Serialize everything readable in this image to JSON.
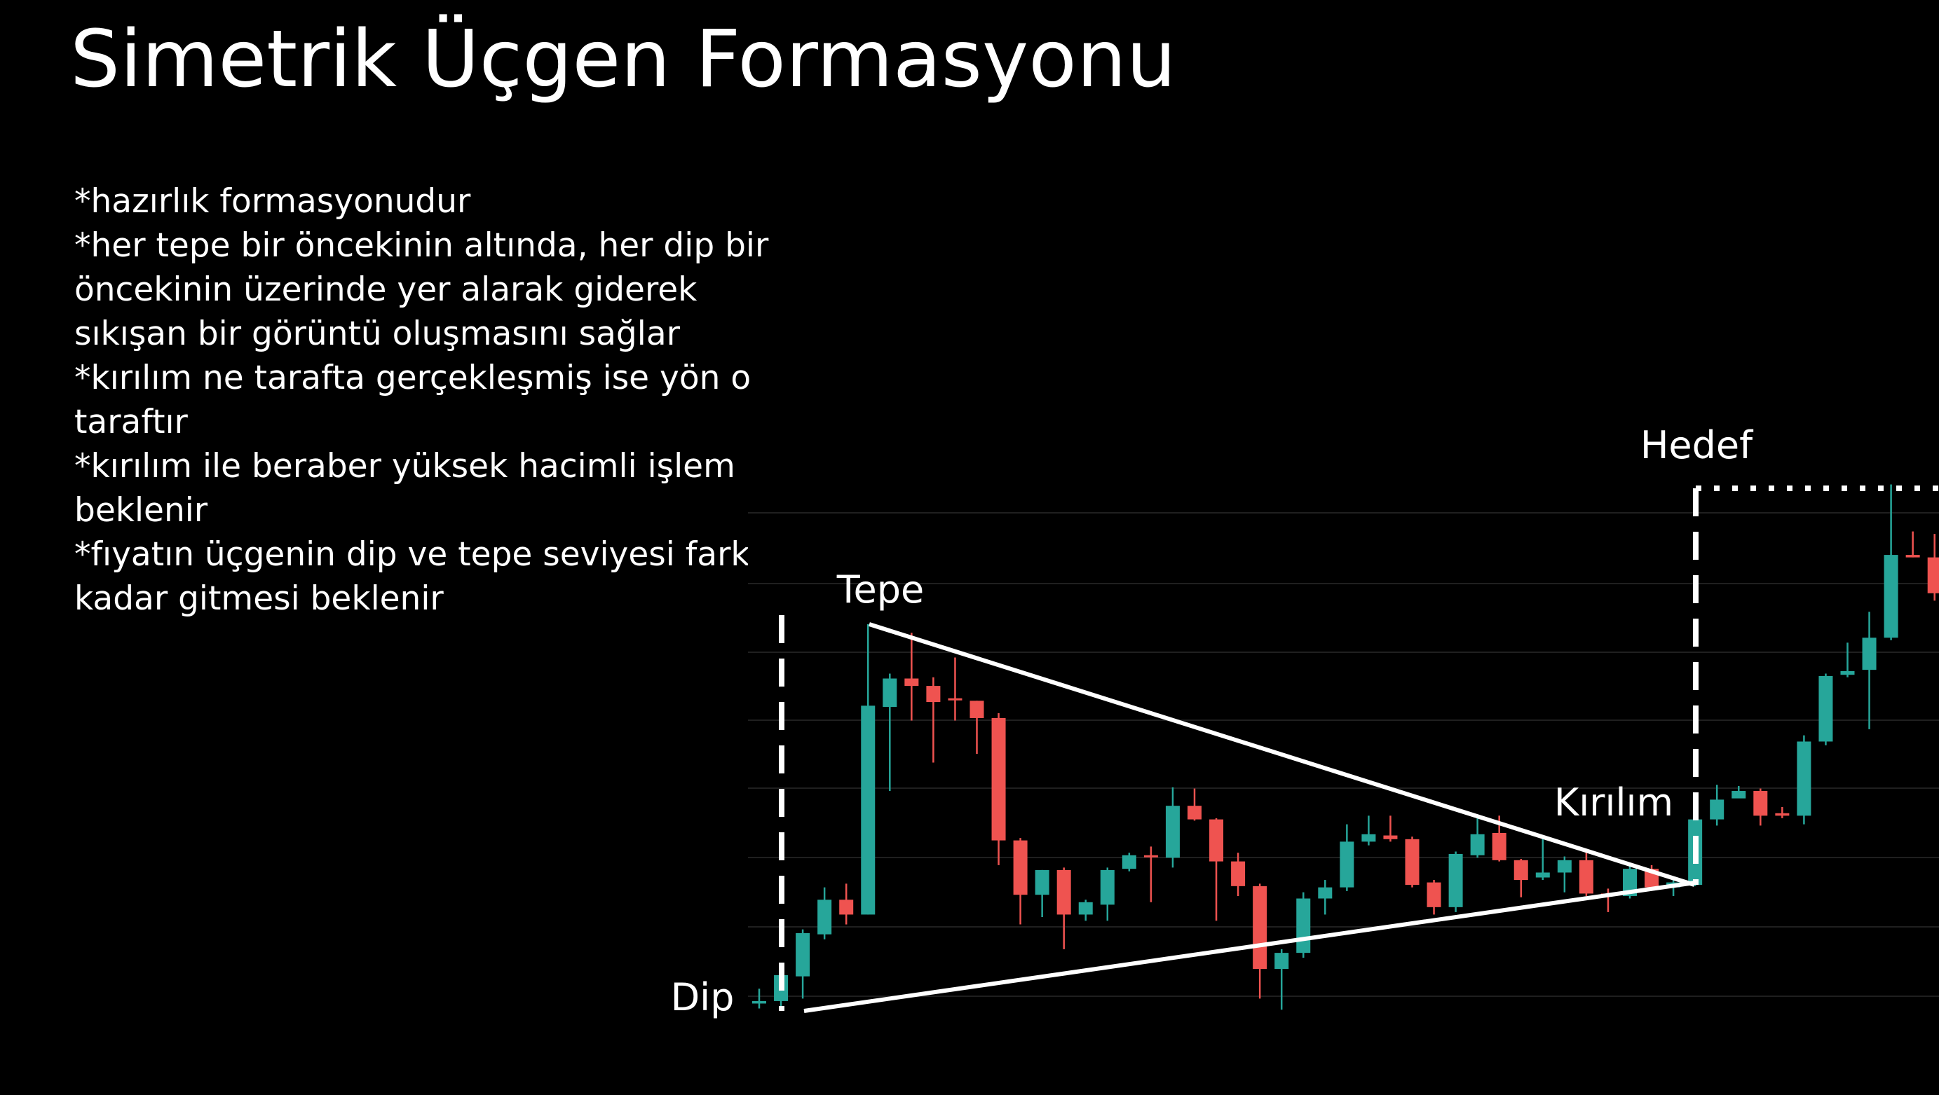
{
  "title": "Simetrik Üçgen Formasyonu",
  "notes": [
    "*hazırlık formasyonudur",
    "*her tepe bir öncekinin altında, her dip bir",
    "öncekinin üzerinde yer alarak giderek",
    "sıkışan bir görüntü oluşmasını sağlar",
    "*kırılım ne tarafta gerçekleşmiş ise yön o",
    "taraftır",
    "*kırılım ile beraber yüksek hacimli işlem",
    "beklenir",
    "*fıyatın üçgenin dip ve tepe seviyesi farkı",
    "kadar gitmesi beklenir"
  ],
  "chart_data": {
    "type": "candlestick",
    "annotations": [
      "Tepe",
      "Dip",
      "Kırılım",
      "Hedef"
    ],
    "up_color": "#26a69a",
    "down_color": "#ef5350",
    "ylim": [
      0,
      886
    ],
    "open": [
      74,
      76,
      96,
      130,
      158,
      146,
      314,
      337,
      331,
      321,
      319,
      305,
      206,
      162,
      182,
      146,
      154,
      183,
      194,
      192,
      234,
      223,
      189,
      169,
      102,
      115,
      159,
      168,
      205,
      210,
      207,
      172,
      152,
      194,
      212,
      190,
      176,
      180,
      190,
      163,
      161,
      183,
      168,
      170,
      223,
      240,
      246,
      228,
      226,
      286,
      340,
      344,
      370,
      437,
      435
    ],
    "high": [
      86,
      101,
      134,
      168,
      171,
      381,
      341,
      374,
      338,
      354,
      319,
      309,
      208,
      182,
      184,
      158,
      184,
      196,
      201,
      249,
      248,
      224,
      196,
      171,
      118,
      164,
      174,
      219,
      226,
      226,
      209,
      174,
      197,
      227,
      226,
      191,
      210,
      193,
      196,
      167,
      188,
      186,
      174,
      226,
      251,
      250,
      248,
      233,
      291,
      341,
      366,
      391,
      494,
      456,
      454
    ],
    "low": [
      70,
      71,
      78,
      126,
      138,
      146,
      246,
      303,
      269,
      303,
      276,
      186,
      138,
      144,
      118,
      141,
      141,
      181,
      156,
      184,
      222,
      141,
      161,
      78,
      69,
      111,
      146,
      165,
      202,
      205,
      168,
      146,
      148,
      192,
      189,
      160,
      174,
      164,
      161,
      148,
      159,
      166,
      161,
      169,
      218,
      241,
      218,
      224,
      219,
      283,
      338,
      296,
      368,
      435,
      400
    ],
    "close": [
      76,
      97,
      131,
      158,
      146,
      315,
      337,
      331,
      318,
      320,
      305,
      206,
      162,
      182,
      146,
      156,
      182,
      194,
      193,
      234,
      223,
      189,
      169,
      102,
      115,
      159,
      168,
      205,
      211,
      207,
      170,
      152,
      195,
      211,
      190,
      174,
      180,
      190,
      163,
      161,
      183,
      168,
      172,
      223,
      239,
      246,
      226,
      226,
      286,
      339,
      343,
      370,
      437,
      435,
      406
    ]
  }
}
